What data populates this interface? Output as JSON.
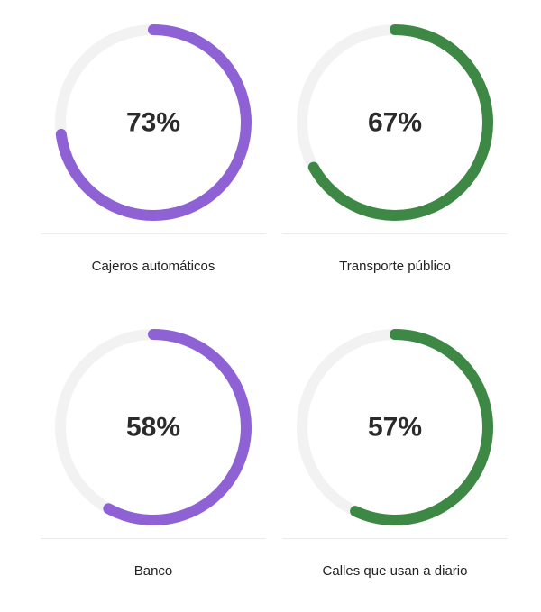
{
  "chart_data": [
    {
      "type": "pie",
      "label": "Cajeros automáticos",
      "percent_text": "73%",
      "value": 73,
      "color": "#8e62d4",
      "track_color": "#f2f2f2"
    },
    {
      "type": "pie",
      "label": "Transporte público",
      "percent_text": "67%",
      "value": 67,
      "color": "#3d8845",
      "track_color": "#f2f2f2"
    },
    {
      "type": "pie",
      "label": "Banco",
      "percent_text": "58%",
      "value": 58,
      "color": "#8e62d4",
      "track_color": "#f2f2f2"
    },
    {
      "type": "pie",
      "label": "Calles que usan a diario",
      "percent_text": "57%",
      "value": 57,
      "color": "#3d8845",
      "track_color": "#f2f2f2"
    }
  ]
}
